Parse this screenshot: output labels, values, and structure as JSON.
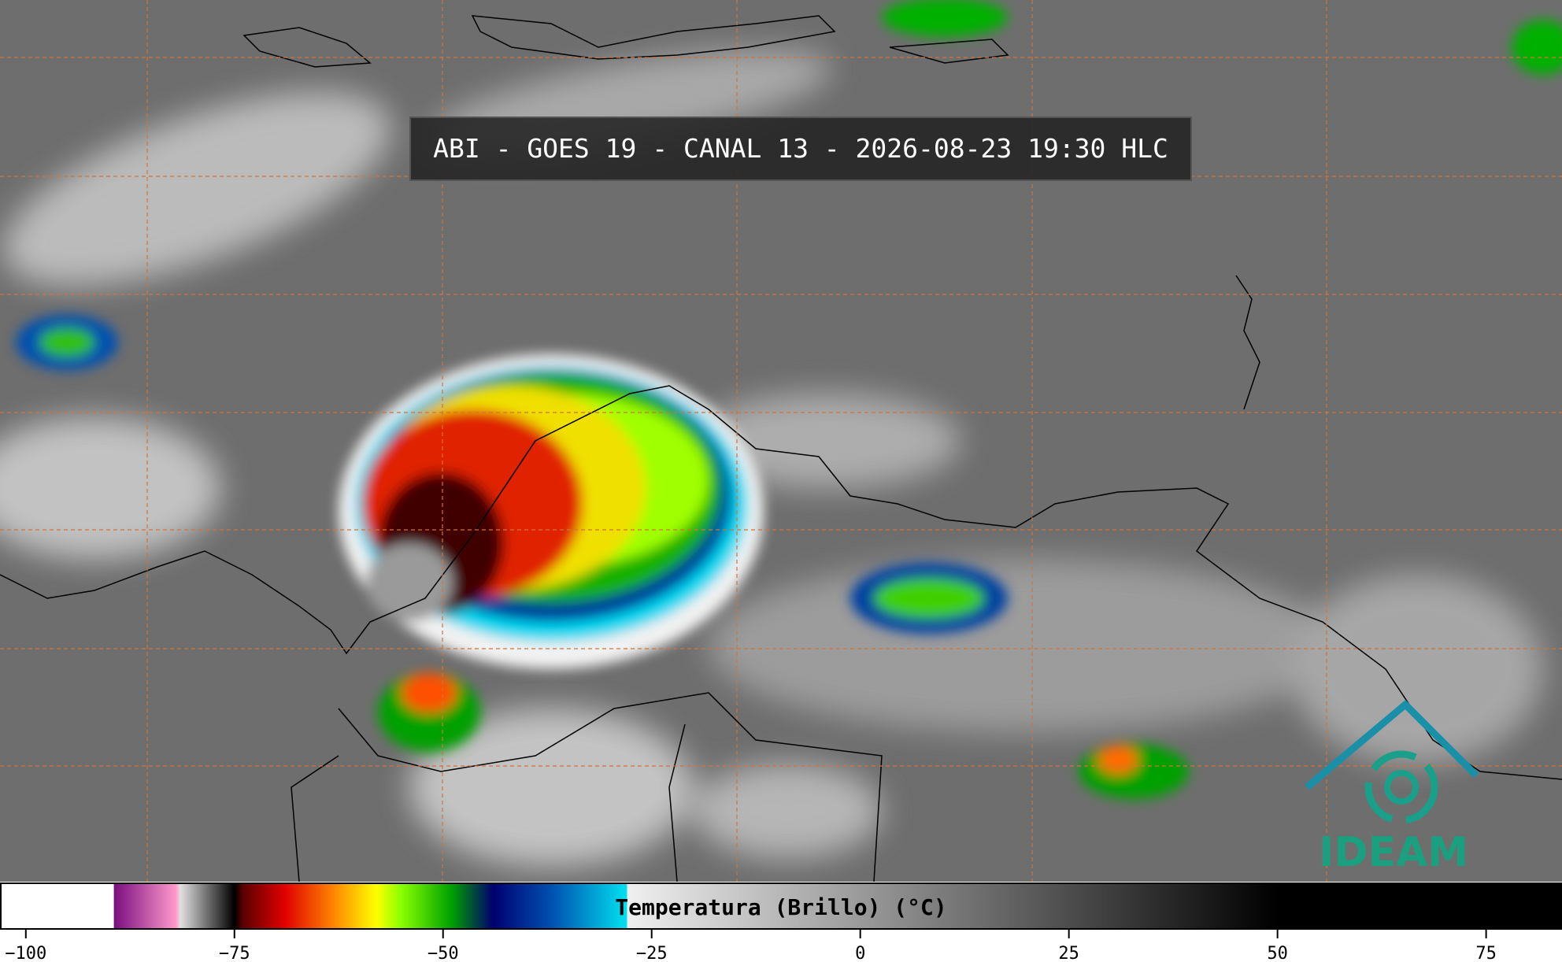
{
  "header": {
    "title": "ABI - GOES 19 - CANAL 13 - 2026-08-23 19:30 HLC"
  },
  "logo": {
    "text": "IDEAM"
  },
  "colorbar": {
    "label": "Temperatura (Brillo) (°C)",
    "lim": [
      -103,
      84
    ],
    "ticks": [
      {
        "value": -100,
        "label": "−100"
      },
      {
        "value": -75,
        "label": "−75"
      },
      {
        "value": -50,
        "label": "−50"
      },
      {
        "value": -25,
        "label": "−25"
      },
      0,
      25,
      50,
      75
    ],
    "colormap": [
      {
        "value": -103,
        "color": "#ffffff"
      },
      {
        "value": -89.5,
        "color": "#ffffff"
      },
      {
        "value": -89.4,
        "color": "#7a0f80"
      },
      {
        "value": -82,
        "color": "#ff99cc"
      },
      {
        "value": -81.5,
        "color": "#e0e0e0"
      },
      {
        "value": -75,
        "color": "#000000"
      },
      {
        "value": -74,
        "color": "#5a0000"
      },
      {
        "value": -69,
        "color": "#e00000"
      },
      {
        "value": -63,
        "color": "#ff8800"
      },
      {
        "value": -58,
        "color": "#ffff00"
      },
      {
        "value": -55,
        "color": "#88ff00"
      },
      {
        "value": -49,
        "color": "#00a000"
      },
      {
        "value": -44,
        "color": "#000070"
      },
      {
        "value": -37,
        "color": "#0050b0"
      },
      {
        "value": -28,
        "color": "#00e0f0"
      },
      {
        "value": -27.9,
        "color": "#f0f0f0"
      },
      {
        "value": 50,
        "color": "#000000"
      },
      {
        "value": 84,
        "color": "#000000"
      }
    ]
  }
}
